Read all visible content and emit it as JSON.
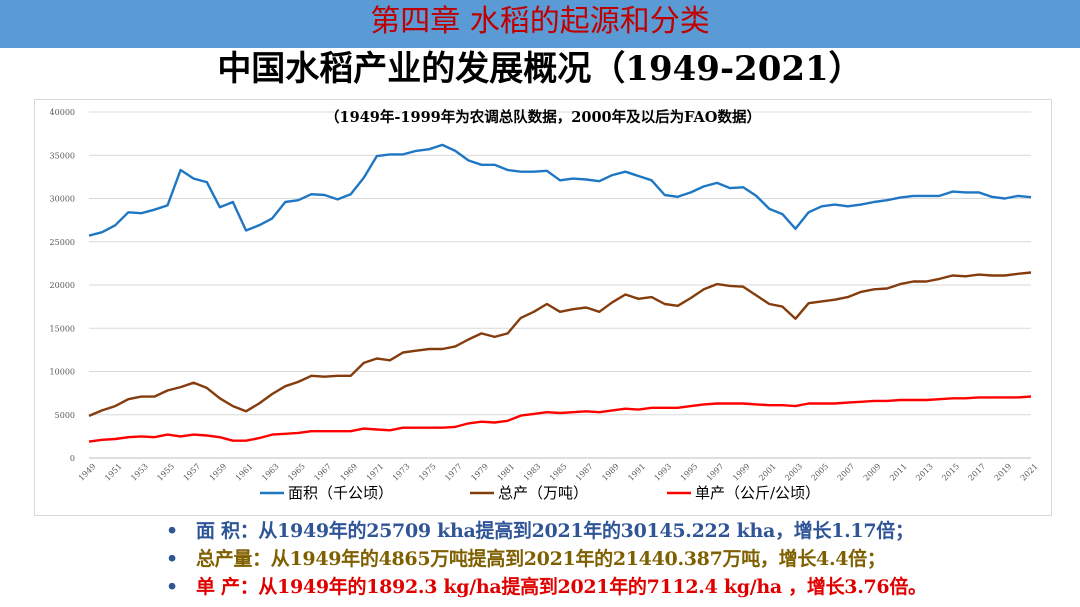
{
  "banner": {
    "title": "第四章  水稻的起源和分类"
  },
  "main_title": "中国水稻产业的发展概况（1949-2021）",
  "bullets": [
    {
      "text": "面    积：从1949年的25709 kha提高到2021年的30145.222 kha，增长1.17倍；",
      "color": "#2f5597"
    },
    {
      "text": "总产量：从1949年的4865万吨提高到2021年的21440.387万吨，增长4.4倍；",
      "color": "#7f6000"
    },
    {
      "text": "单    产：从1949年的1892.3 kg/ha提高到2021年的7112.4 kg/ha ，增长3.76倍。",
      "color": "#e00000"
    }
  ],
  "chart_data": {
    "type": "line",
    "annotation": "（1949年-1999年为农调总队数据，2000年及以后为FAO数据）",
    "ylim": [
      0,
      40000
    ],
    "yticks": [
      "0",
      "5000",
      "10000",
      "15000",
      "20000",
      "25000",
      "30000",
      "35000",
      "40000"
    ],
    "xticks": [
      "1949",
      "1951",
      "1953",
      "1955",
      "1957",
      "1959",
      "1961",
      "1963",
      "1965",
      "1967",
      "1969",
      "1971",
      "1973",
      "1975",
      "1977",
      "1979",
      "1981",
      "1983",
      "1985",
      "1987",
      "1989",
      "1991",
      "1993",
      "1995",
      "1997",
      "1999",
      "2001",
      "2003",
      "2005",
      "2007",
      "2009",
      "2011",
      "2013",
      "2015",
      "2017",
      "2019",
      "2021"
    ],
    "grid": true,
    "legend_position": "bottom",
    "x": [
      1949,
      1950,
      1951,
      1952,
      1953,
      1954,
      1955,
      1956,
      1957,
      1958,
      1959,
      1960,
      1961,
      1962,
      1963,
      1964,
      1965,
      1966,
      1967,
      1968,
      1969,
      1970,
      1971,
      1972,
      1973,
      1974,
      1975,
      1976,
      1977,
      1978,
      1979,
      1980,
      1981,
      1982,
      1983,
      1984,
      1985,
      1986,
      1987,
      1988,
      1989,
      1990,
      1991,
      1992,
      1993,
      1994,
      1995,
      1996,
      1997,
      1998,
      1999,
      2000,
      2001,
      2002,
      2003,
      2004,
      2005,
      2006,
      2007,
      2008,
      2009,
      2010,
      2011,
      2012,
      2013,
      2014,
      2015,
      2016,
      2017,
      2018,
      2019,
      2020,
      2021
    ],
    "series": [
      {
        "name": "面积（千公顷）",
        "color": "#1f77c4",
        "values": [
          25709,
          26100,
          26900,
          28400,
          28300,
          28700,
          29200,
          33300,
          32300,
          31900,
          29000,
          29600,
          26300,
          26900,
          27700,
          29600,
          29800,
          30500,
          30400,
          29900,
          30500,
          32400,
          34900,
          35100,
          35100,
          35500,
          35700,
          36200,
          35500,
          34400,
          33900,
          33900,
          33300,
          33100,
          33100,
          33200,
          32100,
          32300,
          32200,
          32000,
          32700,
          33100,
          32600,
          32100,
          30400,
          30200,
          30700,
          31400,
          31800,
          31200,
          31300,
          30300,
          28800,
          28200,
          26500,
          28400,
          29100,
          29300,
          29100,
          29300,
          29600,
          29800,
          30100,
          30300,
          30300,
          30300,
          30800,
          30700,
          30700,
          30200,
          30000,
          30300,
          30145
        ],
        "labels_drawn": false
      },
      {
        "name": "总产（万吨）",
        "color": "#843c0c",
        "values": [
          4865,
          5500,
          6000,
          6800,
          7100,
          7100,
          7800,
          8200,
          8700,
          8100,
          6900,
          6000,
          5400,
          6300,
          7400,
          8300,
          8800,
          9500,
          9400,
          9500,
          9500,
          11000,
          11500,
          11300,
          12200,
          12400,
          12600,
          12600,
          12900,
          13700,
          14400,
          14000,
          14400,
          16200,
          16900,
          17800,
          16900,
          17200,
          17400,
          16900,
          18000,
          18900,
          18400,
          18600,
          17800,
          17600,
          18500,
          19500,
          20100,
          19900,
          19800,
          18800,
          17800,
          17500,
          16100,
          17900,
          18100,
          18300,
          18600,
          19200,
          19500,
          19600,
          20100,
          20400,
          20400,
          20700,
          21100,
          21000,
          21200,
          21100,
          21100,
          21300,
          21440
        ]
      },
      {
        "name": "单产（公斤/公顷）",
        "color": "#ff0000",
        "values": [
          1892,
          2100,
          2200,
          2400,
          2500,
          2400,
          2700,
          2500,
          2700,
          2600,
          2400,
          2000,
          2000,
          2300,
          2700,
          2800,
          2900,
          3100,
          3100,
          3100,
          3100,
          3400,
          3300,
          3200,
          3500,
          3500,
          3500,
          3500,
          3600,
          4000,
          4200,
          4100,
          4300,
          4900,
          5100,
          5300,
          5200,
          5300,
          5400,
          5300,
          5500,
          5700,
          5600,
          5800,
          5800,
          5800,
          6000,
          6200,
          6300,
          6300,
          6300,
          6200,
          6100,
          6100,
          6000,
          6300,
          6300,
          6300,
          6400,
          6500,
          6600,
          6600,
          6700,
          6700,
          6700,
          6800,
          6900,
          6900,
          7000,
          7000,
          7000,
          7000,
          7112
        ]
      }
    ]
  }
}
